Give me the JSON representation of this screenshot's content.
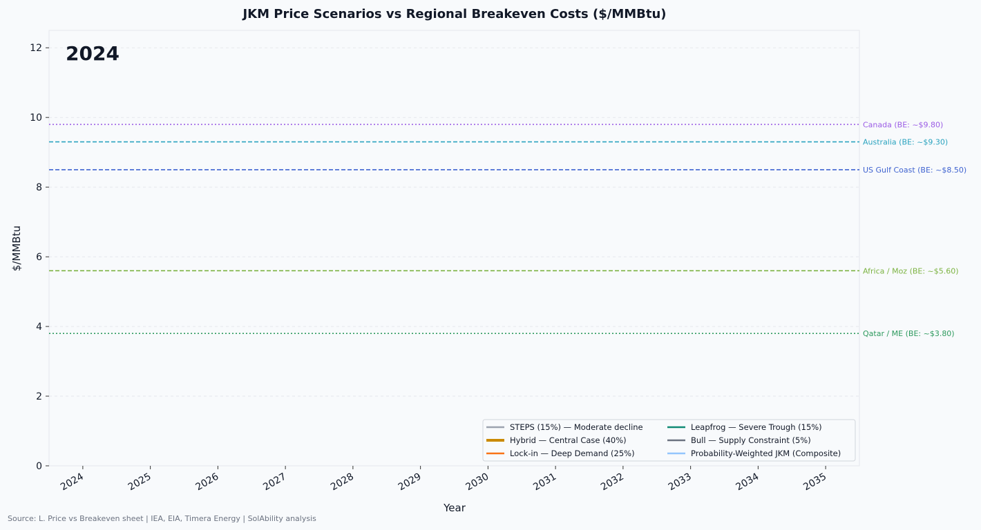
{
  "chart_data": {
    "type": "line",
    "title": "JKM Price Scenarios vs Regional Breakeven Costs  ($/MMBtu)",
    "xlabel": "Year",
    "ylabel": "$/MMBtu",
    "xlim": [
      2023.5,
      2035.5
    ],
    "ylim": [
      0,
      12.5
    ],
    "x_ticks": [
      2024,
      2025,
      2026,
      2027,
      2028,
      2029,
      2030,
      2031,
      2032,
      2033,
      2034,
      2035
    ],
    "y_ticks": [
      0,
      2,
      4,
      6,
      8,
      10,
      12
    ],
    "grid": true,
    "year_annotation": "2024",
    "breakevens": [
      {
        "label": "Canada  (BE: ~$9.80)",
        "value": 9.8,
        "color": "#9b5de5",
        "dash": "dotted"
      },
      {
        "label": "Australia  (BE: ~$9.30)",
        "value": 9.3,
        "color": "#2aa3bf",
        "dash": "dashed"
      },
      {
        "label": "US Gulf Coast  (BE: ~$8.50)",
        "value": 8.5,
        "color": "#3f63d0",
        "dash": "dashed"
      },
      {
        "label": "Africa / Moz  (BE: ~$5.60)",
        "value": 5.6,
        "color": "#7cb342",
        "dash": "dashed"
      },
      {
        "label": "Qatar / ME  (BE: ~$3.80)",
        "value": 3.8,
        "color": "#2e9a5e",
        "dash": "dotted"
      }
    ],
    "series": [
      {
        "name": "STEPS (15%) — Moderate decline",
        "color": "#9ca3af",
        "values": []
      },
      {
        "name": "Hybrid — Central Case (40%)",
        "color": "#ca8a04",
        "values": []
      },
      {
        "name": "Lock-in — Deep Demand (25%)",
        "color": "#f97316",
        "values": []
      },
      {
        "name": "Leapfrog — Severe Trough (15%)",
        "color": "#0f8a74",
        "values": []
      },
      {
        "name": "Bull — Supply Constraint (5%)",
        "color": "#6b7280",
        "values": []
      },
      {
        "name": "Probability-Weighted JKM (Composite)",
        "color": "#93c5fd",
        "values": []
      }
    ],
    "legend_position": "bottom-right"
  },
  "source": "Source: L. Price vs Breakeven sheet | IEA, EIA, Timera Energy | SolAbility analysis"
}
